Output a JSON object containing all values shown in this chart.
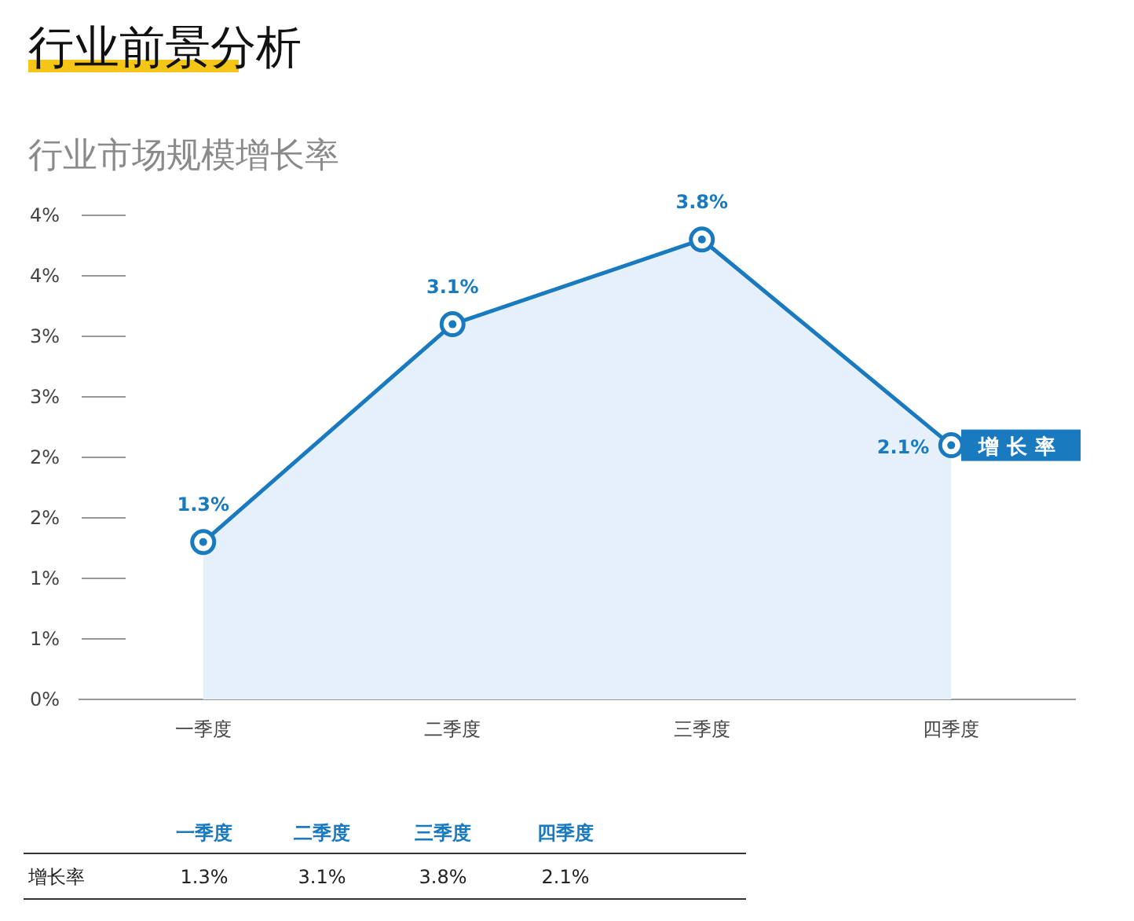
{
  "chart_data": {
    "type": "area",
    "title": "行业前景分析",
    "subtitle": "行业市场规模增长率",
    "categories": [
      "一季度",
      "二季度",
      "三季度",
      "四季度"
    ],
    "series": [
      {
        "name": "增长率",
        "color": "#1a7abf",
        "values": [
          1.3,
          3.1,
          3.8,
          2.1
        ],
        "value_labels": [
          "1.3%",
          "3.1%",
          "3.8%",
          "2.1%"
        ]
      }
    ],
    "ylim": [
      0,
      4
    ],
    "yticks": [
      {
        "value": 0,
        "label": "0%"
      },
      {
        "value": 0.5,
        "label": "1%"
      },
      {
        "value": 1,
        "label": "1%"
      },
      {
        "value": 1.5,
        "label": "2%"
      },
      {
        "value": 2,
        "label": "2%"
      },
      {
        "value": 2.5,
        "label": "3%"
      },
      {
        "value": 3,
        "label": "3%"
      },
      {
        "value": 3.5,
        "label": "4%"
      },
      {
        "value": 4,
        "label": "4%"
      }
    ],
    "marker": "circle",
    "grid": false,
    "data_labels": true
  }
}
